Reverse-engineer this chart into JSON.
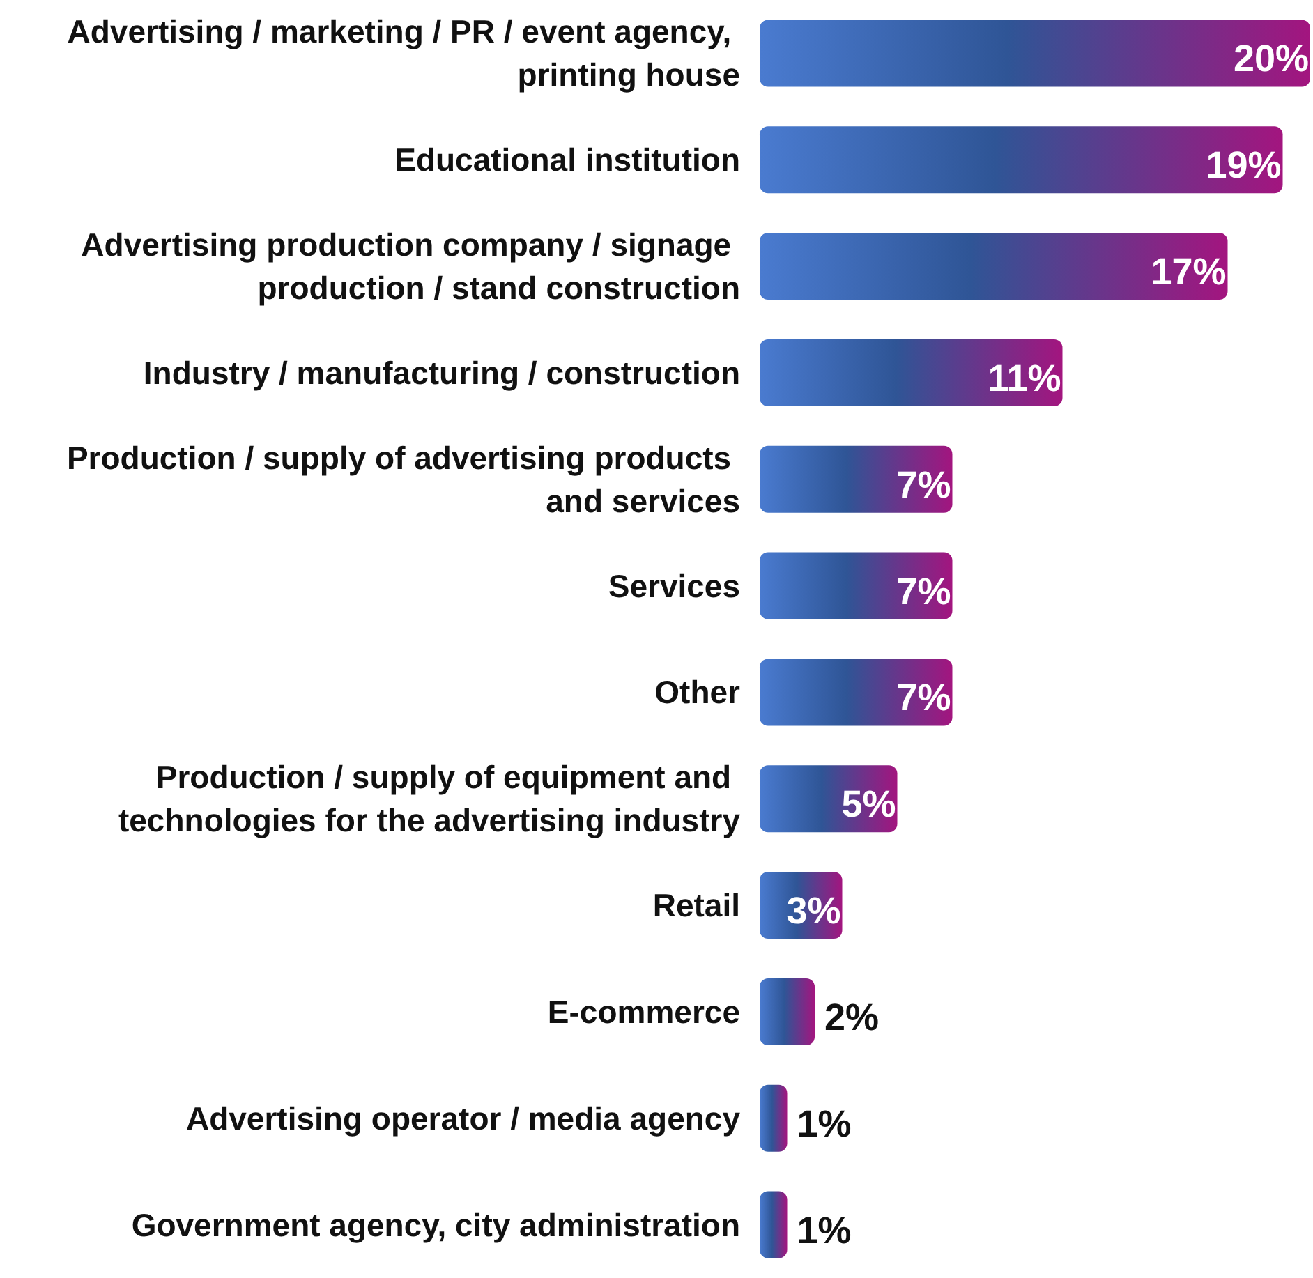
{
  "chart_data": {
    "type": "bar",
    "orientation": "horizontal",
    "categories": [
      "Advertising / marketing / PR / event agency, printing house",
      "Educational institution",
      "Advertising production company / signage production / stand construction",
      "Industry / manufacturing / construction",
      "Production / supply of advertising products and services",
      "Services",
      "Other",
      "Production / supply of equipment and technologies for the advertising industry",
      "Retail",
      "E-commerce",
      "Advertising operator / media agency",
      "Government agency, city administration"
    ],
    "values": [
      20,
      19,
      17,
      11,
      7,
      7,
      7,
      5,
      3,
      2,
      1,
      1
    ],
    "value_labels": [
      "20%",
      "19%",
      "17%",
      "11%",
      "7%",
      "7%",
      "7%",
      "5%",
      "3%",
      "2%",
      "1%",
      "1%"
    ],
    "color": "#4a7bd0"
  }
}
